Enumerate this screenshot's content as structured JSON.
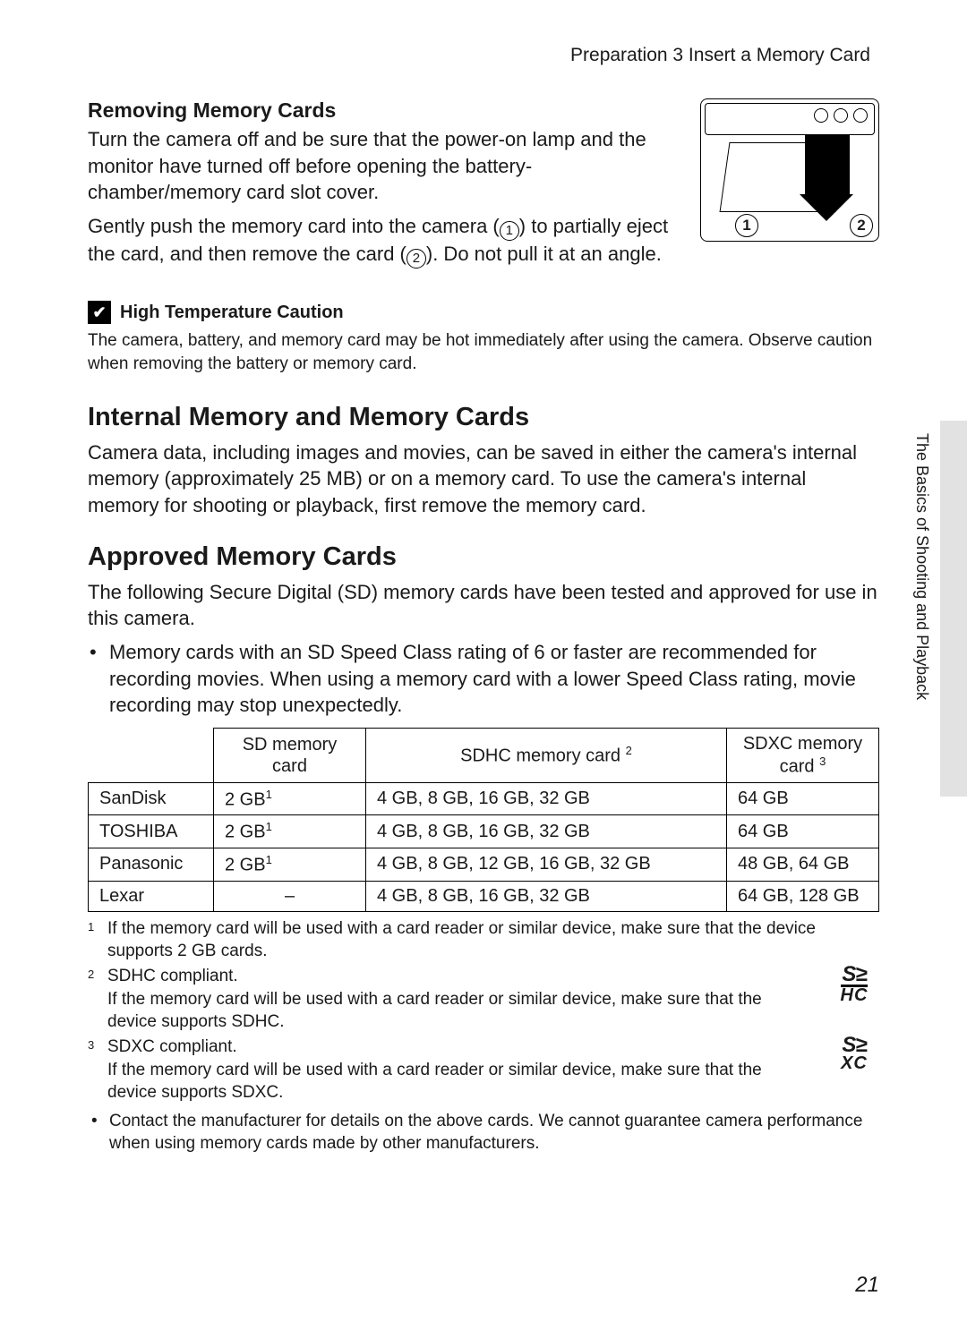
{
  "breadcrumb": "Preparation 3 Insert a Memory Card",
  "side_tab_label": "The Basics of Shooting and Playback",
  "page_number": "21",
  "removing": {
    "heading": "Removing Memory Cards",
    "para1": "Turn the camera off and be sure that the power-on lamp and the monitor have turned off before opening the battery-chamber/memory card slot cover.",
    "para2a": "Gently push the memory card into the camera (",
    "para2b": ") to partially eject the card, and then remove the card (",
    "para2c": "). Do not pull it at an angle.",
    "step1": "1",
    "step2": "2"
  },
  "caution": {
    "heading": "High Temperature Caution",
    "text": "The camera, battery, and memory card may be hot immediately after using the camera. Observe caution when removing the battery or memory card."
  },
  "internal": {
    "heading": "Internal Memory and Memory Cards",
    "text": "Camera data, including images and movies, can be saved in either the camera's internal memory (approximately 25 MB) or on a memory card. To use the camera's internal memory for shooting or playback, first remove the memory card."
  },
  "approved": {
    "heading": "Approved Memory Cards",
    "intro": "The following Secure Digital (SD) memory cards have been tested and approved for use in this camera.",
    "bullet": "Memory cards with an SD Speed Class rating of 6 or faster are recommended for recording movies. When using a memory card with a lower Speed Class rating, movie recording may stop unexpectedly."
  },
  "table": {
    "columns": {
      "brand": "",
      "sd": "SD memory card",
      "sdhc": "SDHC memory card",
      "sdxc": "SDXC memory card",
      "sdhc_sup": "2",
      "sdxc_sup": "3"
    },
    "rows": [
      {
        "brand": "SanDisk",
        "sd": "2 GB",
        "sd_sup": "1",
        "sdhc": "4 GB, 8 GB, 16 GB, 32 GB",
        "sdxc": "64 GB"
      },
      {
        "brand": "TOSHIBA",
        "sd": "2 GB",
        "sd_sup": "1",
        "sdhc": "4 GB, 8 GB, 16 GB, 32 GB",
        "sdxc": "64 GB"
      },
      {
        "brand": "Panasonic",
        "sd": "2 GB",
        "sd_sup": "1",
        "sdhc": "4 GB, 8 GB, 12 GB, 16 GB, 32 GB",
        "sdxc": "48 GB, 64 GB"
      },
      {
        "brand": "Lexar",
        "sd": "–",
        "sd_sup": "",
        "sdhc": "4 GB, 8 GB, 16 GB, 32 GB",
        "sdxc": "64 GB, 128 GB"
      }
    ]
  },
  "footnotes": {
    "f1_num": "1",
    "f1": "If the memory card will be used with a card reader or similar device, make sure that the device supports 2 GB cards.",
    "f2_num": "2",
    "f2a": "SDHC compliant.",
    "f2b": "If the memory card will be used with a card reader or similar device, make sure that the device supports SDHC.",
    "f3_num": "3",
    "f3a": "SDXC compliant.",
    "f3b": "If the memory card will be used with a card reader or similar device, make sure that the device supports SDXC.",
    "bullet": "Contact the manufacturer for details on the above cards. We cannot guarantee camera performance when using memory cards made by other manufacturers."
  },
  "logos": {
    "sdhc_row1": "S≥",
    "sdhc_row2": "HC",
    "sdxc_row1": "S≥",
    "sdxc_row2": "XC"
  }
}
